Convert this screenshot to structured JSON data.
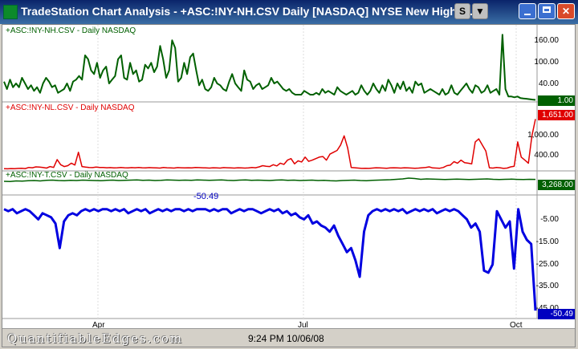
{
  "window": {
    "title": "TradeStation Chart Analysis - +ASC:!NY-NH.CSV  Daily  [NASDAQ] NYSE New Highs -...",
    "buttons": [
      {
        "label": "S",
        "icon": "symbol-link-icon"
      },
      {
        "label": "▼",
        "icon": "dropdown-icon"
      },
      {
        "label": "",
        "icon": "minimize-icon"
      },
      {
        "label": "",
        "icon": "maximize-icon"
      },
      {
        "label": "✕",
        "icon": "close-icon"
      }
    ]
  },
  "panels": [
    {
      "label": "+ASC:!NY-NH.CSV - Daily  NASDAQ",
      "color": "#006000",
      "scale": [
        "160.00",
        "100.00",
        "40.00"
      ],
      "last_value": "1.00"
    },
    {
      "label": "+ASC:!NY-NL.CSV - Daily  NASDAQ",
      "color": "#e00000",
      "scale": [
        "1,000.00",
        "400.00"
      ],
      "last_value": "1,651.00"
    },
    {
      "label": "+ASC:!NY-T.CSV - Daily  NASDAQ",
      "color": "#006000",
      "scale": [],
      "last_value": "3,268.00"
    },
    {
      "label": "",
      "color": "#0000e0",
      "scale": [
        "-5.00",
        "-15.00",
        "-25.00",
        "-35.00",
        "-45.00"
      ],
      "last_value": "-50.49",
      "annotation": "-50.49"
    }
  ],
  "x_axis": {
    "labels": [
      "Apr",
      "Jul",
      "Oct"
    ]
  },
  "footer": {
    "watermark": "QuantifiableEdges.com",
    "timestamp": "9:24 PM 10/06/08"
  },
  "chart_data": [
    {
      "type": "line",
      "title": "+ASC:!NY-NH.CSV - Daily  NASDAQ",
      "ylim": [
        0,
        180
      ],
      "series": [
        {
          "name": "+ASC:!NY-NH.CSV",
          "values": [
            50,
            30,
            55,
            35,
            45,
            35,
            60,
            45,
            30,
            40,
            25,
            35,
            20,
            45,
            60,
            50,
            35,
            40,
            20,
            25,
            30,
            45,
            25,
            50,
            55,
            65,
            55,
            120,
            110,
            80,
            70,
            100,
            60,
            80,
            90,
            45,
            55,
            65,
            110,
            120,
            60,
            55,
            100,
            70,
            80,
            50,
            55,
            95,
            85,
            100,
            75,
            90,
            145,
            110,
            60,
            80,
            160,
            140,
            50,
            60,
            100,
            70,
            115,
            125,
            80,
            40,
            55,
            30,
            25,
            35,
            60,
            45,
            40,
            30,
            25,
            50,
            70,
            45,
            35,
            25,
            80,
            55,
            50,
            30,
            40,
            45,
            30,
            35,
            40,
            60,
            45,
            50,
            40,
            30,
            25,
            30,
            20,
            15,
            15,
            15,
            25,
            20,
            15,
            15,
            20,
            15,
            30,
            20,
            25,
            20,
            15,
            35,
            25,
            20,
            15,
            20,
            25,
            15,
            20,
            40,
            25,
            15,
            25,
            45,
            30,
            20,
            40,
            25,
            55,
            40,
            20,
            45,
            30,
            50,
            25,
            35,
            20,
            50,
            40,
            45,
            20,
            25,
            30,
            25,
            20,
            15,
            30,
            15,
            20,
            40,
            20,
            15,
            25,
            35,
            45,
            30,
            20,
            40,
            35,
            20,
            25,
            40,
            20,
            25,
            30,
            15,
            175,
            30,
            10,
            10,
            8,
            10,
            6,
            5,
            4,
            3,
            2,
            1
          ]
        }
      ]
    },
    {
      "type": "line",
      "title": "+ASC:!NY-NL.CSV - Daily  NASDAQ",
      "ylim": [
        0,
        1900
      ],
      "series": [
        {
          "name": "+ASC:!NY-NL.CSV",
          "values": [
            20,
            15,
            25,
            20,
            30,
            35,
            25,
            60,
            50,
            80,
            70,
            60,
            40,
            90,
            60,
            320,
            150,
            90,
            120,
            200,
            140,
            560,
            90,
            70,
            60,
            55,
            70,
            60,
            60,
            50,
            55,
            45,
            50,
            60,
            50,
            45,
            55,
            50,
            60,
            50,
            45,
            55,
            50,
            45,
            40,
            60,
            50,
            45,
            40,
            55,
            50,
            45,
            50,
            45,
            60,
            55,
            50,
            45,
            40,
            50,
            45,
            40,
            55,
            50,
            45,
            40,
            50,
            45,
            40,
            45,
            60,
            50,
            80,
            120,
            100,
            90,
            150,
            110,
            200,
            160,
            300,
            350,
            180,
            280,
            240,
            400,
            260,
            300,
            350,
            400,
            420,
            300,
            500,
            560,
            620,
            800,
            1100,
            700,
            60,
            50,
            40,
            30,
            35,
            30,
            40,
            50,
            45,
            40,
            35,
            45,
            50,
            45,
            40,
            50,
            45,
            40,
            35,
            40,
            50,
            60,
            80,
            45,
            40,
            35,
            60,
            120,
            140,
            250,
            200,
            300,
            220,
            200,
            180,
            900,
            1000,
            800,
            600,
            50,
            40,
            60,
            50,
            30,
            40,
            80,
            100,
            900,
            400,
            300,
            200,
            1100,
            1651
          ]
        }
      ]
    },
    {
      "type": "line",
      "title": "+ASC:!NY-T.CSV - Daily  NASDAQ",
      "ylim": [
        3000,
        3400
      ],
      "series": [
        {
          "name": "+ASC:!NY-T.CSV",
          "values": [
            3220,
            3215,
            3230,
            3225,
            3235,
            3240,
            3230,
            3245,
            3250,
            3240,
            3235,
            3245,
            3240,
            3250,
            3245,
            3240,
            3235,
            3245,
            3250,
            3240,
            3245,
            3250,
            3255,
            3245,
            3250,
            3240,
            3245,
            3255,
            3250,
            3245,
            3250,
            3245,
            3255,
            3250,
            3245,
            3250,
            3255,
            3245,
            3240,
            3250,
            3255,
            3245,
            3250,
            3245,
            3240,
            3250,
            3255,
            3245,
            3250,
            3240,
            3245,
            3250,
            3240,
            3245,
            3235,
            3230,
            3240,
            3245,
            3250,
            3240,
            3235,
            3245,
            3250,
            3255,
            3260,
            3270,
            3280,
            3300,
            3290,
            3270,
            3280,
            3275,
            3270,
            3265,
            3270,
            3275,
            3270,
            3265,
            3270,
            3275,
            3280,
            3270,
            3265,
            3270,
            3275,
            3268,
            3265,
            3270,
            3268
          ]
        }
      ]
    },
    {
      "type": "line",
      "title": "",
      "ylim": [
        -52,
        2
      ],
      "series": [
        {
          "name": "",
          "values": [
            -1,
            -2,
            -1,
            -3,
            -2,
            -1,
            -2,
            -4,
            -6,
            -3,
            -4,
            -5,
            -8,
            -20,
            -7,
            -4,
            -3,
            -4,
            -2,
            -1,
            -2,
            -1,
            -2,
            -1,
            -1,
            -2,
            -1,
            -2,
            -1,
            -3,
            -2,
            -1,
            -2,
            -1,
            -3,
            -2,
            -1,
            -2,
            -1,
            -2,
            -1,
            -1,
            -2,
            -1,
            -2,
            -1,
            -1,
            -1,
            -2,
            -1,
            -2,
            -1,
            -1,
            -3,
            -2,
            -1,
            -2,
            -1,
            -1,
            -2,
            -3,
            -2,
            -1,
            -2,
            -1,
            -3,
            -2,
            -4,
            -3,
            -5,
            -6,
            -4,
            -8,
            -7,
            -9,
            -10,
            -12,
            -9,
            -14,
            -18,
            -22,
            -20,
            -26,
            -34,
            -12,
            -4,
            -2,
            -1,
            -2,
            -1,
            -2,
            -1,
            -2,
            -1,
            -3,
            -2,
            -1,
            -2,
            -1,
            -2,
            -1,
            -3,
            -2,
            -1,
            -2,
            -1,
            -2,
            -4,
            -6,
            -10,
            -8,
            -12,
            -31,
            -32,
            -28,
            -2,
            -6,
            -10,
            -7,
            -30,
            -1,
            -12,
            -16,
            -18,
            -50.49
          ]
        }
      ]
    }
  ]
}
